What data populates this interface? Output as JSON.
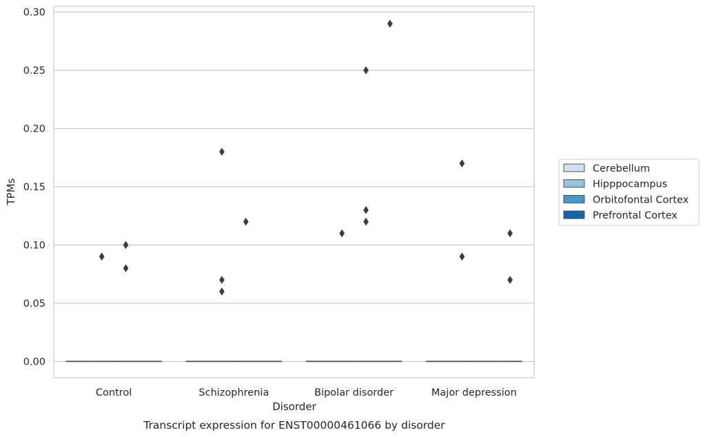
{
  "chart_data": {
    "type": "box",
    "title": "",
    "caption": "Transcript expression for ENST00000461066 by disorder",
    "xlabel": "Disorder",
    "ylabel": "TPMs",
    "categories": [
      "Control",
      "Schizophrenia",
      "Bipolar disorder",
      "Major depression"
    ],
    "ylim": [
      -0.014,
      0.305
    ],
    "yticks": [
      0.0,
      0.05,
      0.1,
      0.15,
      0.2,
      0.25,
      0.3
    ],
    "ytick_labels": [
      "0.00",
      "0.05",
      "0.10",
      "0.15",
      "0.20",
      "0.25",
      "0.30"
    ],
    "grid": "horizontal",
    "legend_position": "right",
    "series": [
      {
        "name": "Cerebellum",
        "color": "#d0e1f2",
        "medians": [
          0,
          0,
          0,
          0
        ],
        "outliers": [
          [],
          [],
          [],
          []
        ]
      },
      {
        "name": "Hipppocampus",
        "color": "#94c4df",
        "medians": [
          0,
          0,
          0,
          0
        ],
        "outliers": [
          [
            0.09
          ],
          [
            0.18,
            0.07,
            0.06
          ],
          [
            0.11
          ],
          [
            0.17,
            0.09
          ]
        ]
      },
      {
        "name": "Orbitofontal Cortex",
        "color": "#4a98c9",
        "medians": [
          0,
          0,
          0,
          0
        ],
        "outliers": [
          [
            0.1,
            0.08
          ],
          [
            0.12
          ],
          [
            0.25,
            0.13,
            0.12
          ],
          []
        ]
      },
      {
        "name": "Prefrontal Cortex",
        "color": "#1764ab",
        "medians": [
          0,
          0,
          0,
          0
        ],
        "outliers": [
          [],
          [],
          [
            0.29
          ],
          [
            0.11,
            0.07
          ]
        ]
      }
    ]
  }
}
